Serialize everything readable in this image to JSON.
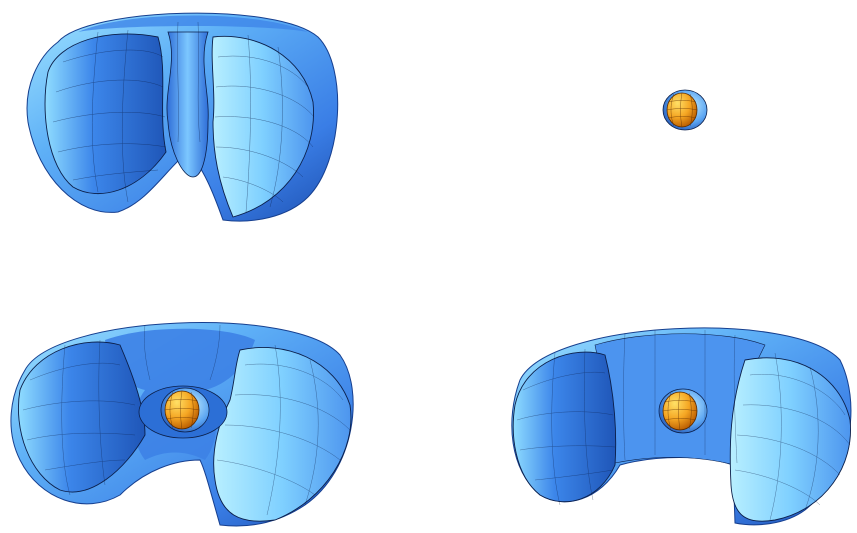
{
  "colors": {
    "torus_light": "#9fe3ff",
    "torus_mid": "#4f97ef",
    "torus_dark": "#1d4fb0",
    "torus_shadow": "#0f2f7a",
    "sphere_light": "#ffe066",
    "sphere_mid": "#f5a623",
    "sphere_dark": "#b75a00",
    "mesh_line": "#0b1f4a"
  },
  "figures": [
    {
      "name": "cutaway-tight-torus",
      "has_sphere": false
    },
    {
      "name": "small-sphere-alone",
      "has_sphere": true
    },
    {
      "name": "cutaway-torus-with-sphere-pinched",
      "has_sphere": true
    },
    {
      "name": "cutaway-torus-with-sphere-wide",
      "has_sphere": true
    }
  ]
}
